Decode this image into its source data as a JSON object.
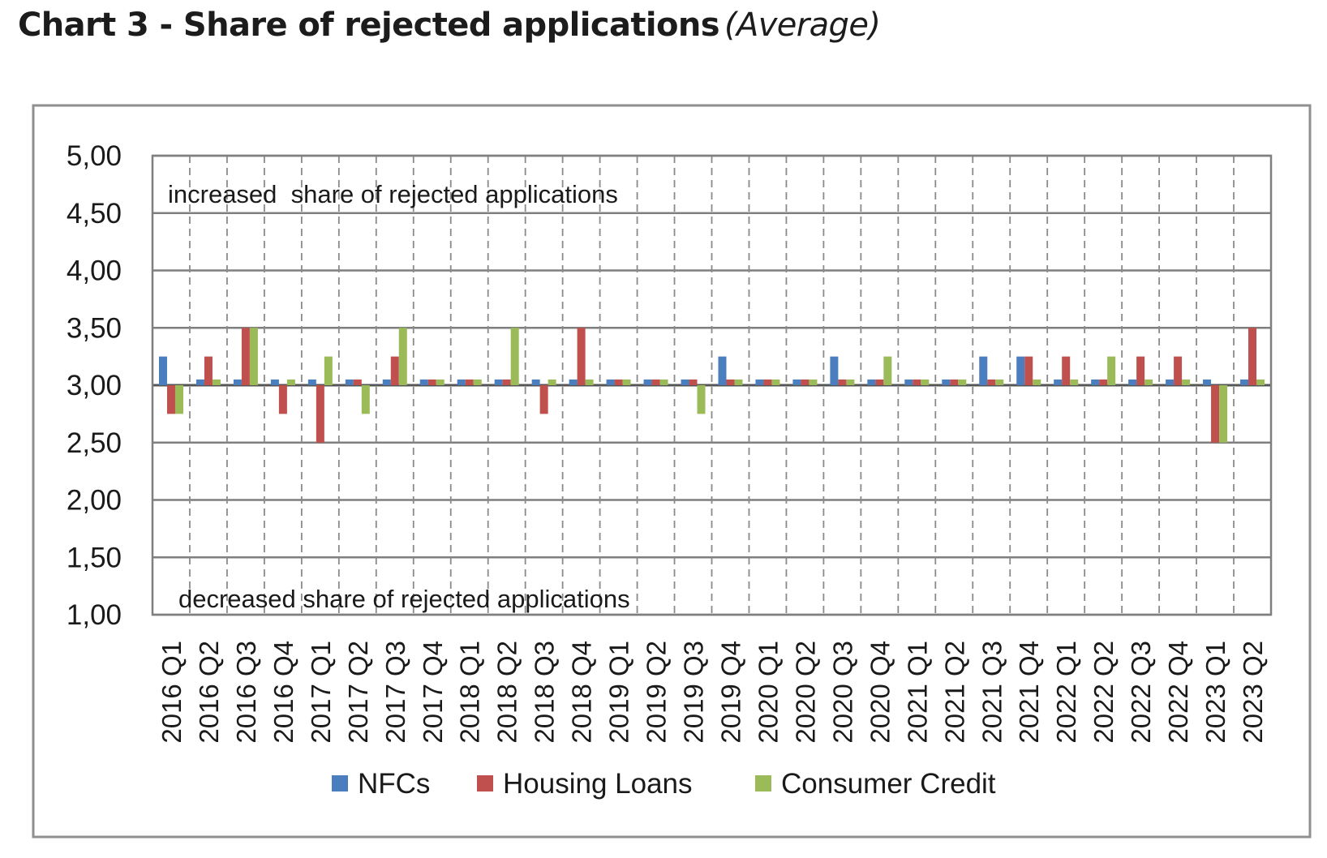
{
  "page": {
    "title": "Chart 3 - Share of rejected applications",
    "subtitle": "(Average)"
  },
  "chart_data": {
    "type": "bar",
    "annotation_top": "increased  share of rejected applications",
    "annotation_bottom": "decreased share of rejected applications",
    "ylim": [
      1.0,
      5.0
    ],
    "baseline": 3.0,
    "yticks": [
      "1,00",
      "1,50",
      "2,00",
      "2,50",
      "3,00",
      "3,50",
      "4,00",
      "4,50",
      "5,00"
    ],
    "ytick_values": [
      1.0,
      1.5,
      2.0,
      2.5,
      3.0,
      3.5,
      4.0,
      4.5,
      5.0
    ],
    "grid": true,
    "legend_position": "bottom",
    "categories": [
      "2016 Q1",
      "2016 Q2",
      "2016 Q3",
      "2016 Q4",
      "2017 Q1",
      "2017 Q2",
      "2017 Q3",
      "2017 Q4",
      "2018 Q1",
      "2018 Q2",
      "2018 Q3",
      "2018 Q4",
      "2019 Q1",
      "2019 Q2",
      "2019 Q3",
      "2019 Q4",
      "2020 Q1",
      "2020 Q2",
      "2020 Q3",
      "2020 Q4",
      "2021 Q1",
      "2021 Q2",
      "2021 Q3",
      "2021 Q4",
      "2022 Q1",
      "2022 Q2",
      "2022 Q3",
      "2022 Q4",
      "2023 Q1",
      "2023 Q2"
    ],
    "series": [
      {
        "name": "NFCs",
        "color": "#4a7ebf",
        "values": [
          3.25,
          3.05,
          3.05,
          3.05,
          3.05,
          3.05,
          3.05,
          3.05,
          3.05,
          3.05,
          3.05,
          3.05,
          3.05,
          3.05,
          3.05,
          3.25,
          3.05,
          3.05,
          3.25,
          3.05,
          3.05,
          3.05,
          3.25,
          3.25,
          3.05,
          3.05,
          3.05,
          3.05,
          3.05,
          3.05
        ]
      },
      {
        "name": "Housing Loans",
        "color": "#c0504d",
        "values": [
          2.75,
          3.25,
          3.5,
          2.75,
          2.5,
          3.05,
          3.25,
          3.05,
          3.05,
          3.05,
          2.75,
          3.5,
          3.05,
          3.05,
          3.05,
          3.05,
          3.05,
          3.05,
          3.05,
          3.05,
          3.05,
          3.05,
          3.05,
          3.25,
          3.25,
          3.05,
          3.25,
          3.25,
          2.5,
          3.5
        ]
      },
      {
        "name": "Consumer Credit",
        "color": "#9bbb59",
        "values": [
          2.75,
          3.05,
          3.5,
          3.05,
          3.25,
          2.75,
          3.5,
          3.05,
          3.05,
          3.5,
          3.05,
          3.05,
          3.05,
          3.05,
          2.75,
          3.05,
          3.05,
          3.05,
          3.05,
          3.25,
          3.05,
          3.05,
          3.05,
          3.05,
          3.05,
          3.25,
          3.05,
          3.05,
          2.5,
          3.05
        ]
      }
    ]
  }
}
